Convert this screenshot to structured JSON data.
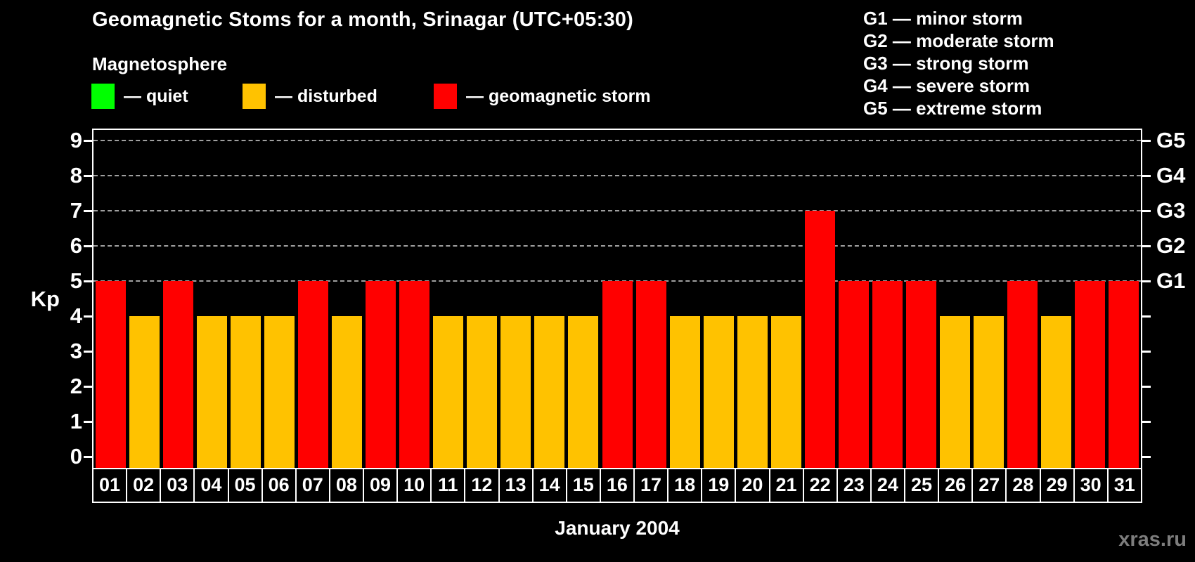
{
  "title": "Geomagnetic Stoms for a month, Srinagar (UTC+05:30)",
  "watermark": "xras.ru",
  "colors": {
    "background": "#000000",
    "axis": "#ffffff",
    "grid": "#a0a0a0",
    "text": "#ffffff",
    "watermark": "#7d7d7d",
    "quiet": "#00ff00",
    "disturbed": "#ffc200",
    "storm": "#ff0000"
  },
  "legend": {
    "heading": "Magnetosphere",
    "items": [
      {
        "key": "quiet",
        "label": "— quiet"
      },
      {
        "key": "disturbed",
        "label": "— disturbed"
      },
      {
        "key": "storm",
        "label": "— geomagnetic storm"
      }
    ]
  },
  "storm_scale_legend": [
    "G1 — minor storm",
    "G2 — moderate storm",
    "G3 — strong storm",
    "G4 — severe storm",
    "G5 — extreme storm"
  ],
  "chart_data": {
    "type": "bar",
    "title": "Geomagnetic Stoms for a month, Srinagar (UTC+05:30)",
    "xlabel": "January 2004",
    "ylabel": "Kp",
    "ylim": [
      0,
      9
    ],
    "yticks": [
      0,
      1,
      2,
      3,
      4,
      5,
      6,
      7,
      8,
      9
    ],
    "grid_values": [
      5,
      6,
      7,
      8,
      9
    ],
    "grid_style": "dashed, only at storm levels G1-G5",
    "legend_position": "top-left and top-right",
    "right_axis_labels": [
      {
        "value": 5,
        "label": "G1"
      },
      {
        "value": 6,
        "label": "G2"
      },
      {
        "value": 7,
        "label": "G3"
      },
      {
        "value": 8,
        "label": "G4"
      },
      {
        "value": 9,
        "label": "G5"
      }
    ],
    "categories": [
      "01",
      "02",
      "03",
      "04",
      "05",
      "06",
      "07",
      "08",
      "09",
      "10",
      "11",
      "12",
      "13",
      "14",
      "15",
      "16",
      "17",
      "18",
      "19",
      "20",
      "21",
      "22",
      "23",
      "24",
      "25",
      "26",
      "27",
      "28",
      "29",
      "30",
      "31"
    ],
    "values": [
      5,
      4,
      5,
      4,
      4,
      4,
      5,
      4,
      5,
      5,
      4,
      4,
      4,
      4,
      4,
      5,
      5,
      4,
      4,
      4,
      4,
      7,
      5,
      5,
      5,
      4,
      4,
      5,
      4,
      5,
      5
    ],
    "statuses": [
      "storm",
      "disturbed",
      "storm",
      "disturbed",
      "disturbed",
      "disturbed",
      "storm",
      "disturbed",
      "storm",
      "storm",
      "disturbed",
      "disturbed",
      "disturbed",
      "disturbed",
      "disturbed",
      "storm",
      "storm",
      "disturbed",
      "disturbed",
      "disturbed",
      "disturbed",
      "storm",
      "storm",
      "storm",
      "storm",
      "disturbed",
      "disturbed",
      "storm",
      "disturbed",
      "storm",
      "storm"
    ]
  }
}
